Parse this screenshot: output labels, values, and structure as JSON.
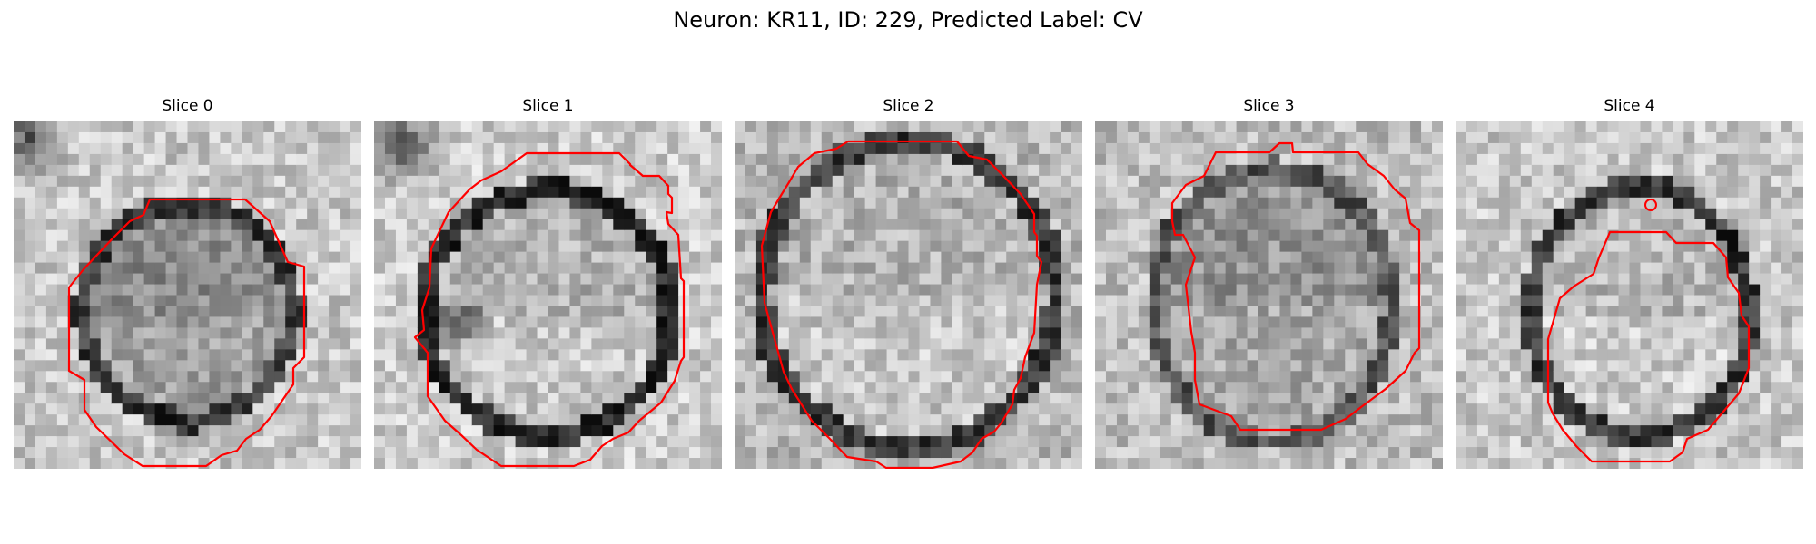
{
  "figure": {
    "title": "Neuron: KR11, ID: 229, Predicted Label: CV",
    "contour_color": "#ff0000"
  },
  "panels": [
    {
      "title": "Slice 0"
    },
    {
      "title": "Slice 1"
    },
    {
      "title": "Slice 2"
    },
    {
      "title": "Slice 3"
    },
    {
      "title": "Slice 4"
    }
  ]
}
